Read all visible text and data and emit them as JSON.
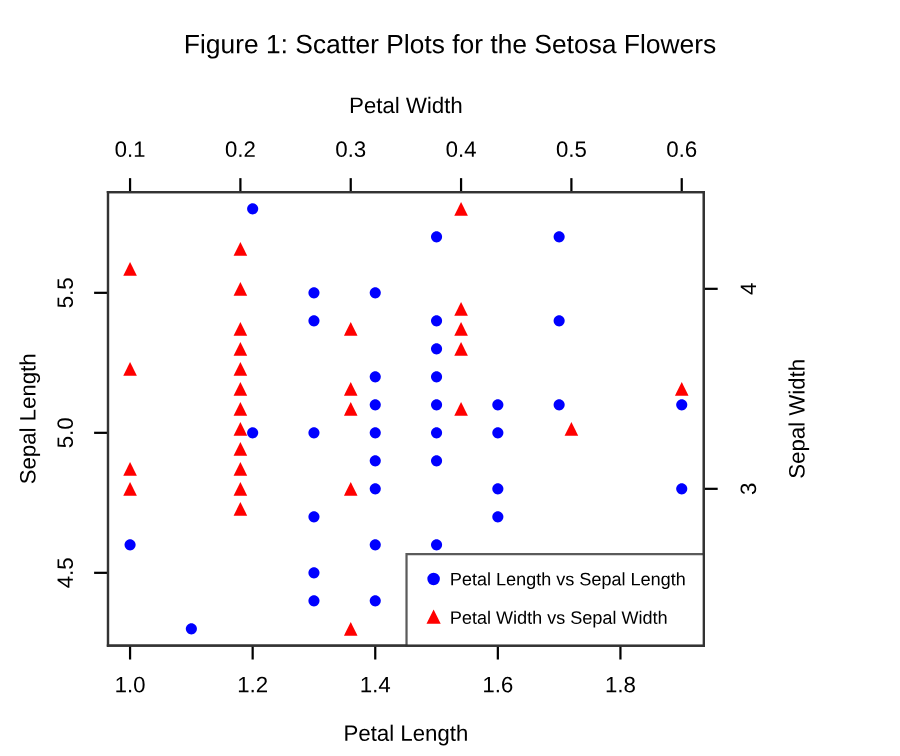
{
  "chart_data": [
    {
      "type": "scatter",
      "title": "Figure 1: Scatter Plots for the Setosa Flowers",
      "xlabel": "Petal Length",
      "ylabel": "Sepal Length",
      "xlim": [
        0.964,
        1.936
      ],
      "xticks": [
        {
          "value": 1.0,
          "label": "1.0"
        },
        {
          "value": 1.2,
          "label": "1.2"
        },
        {
          "value": 1.4,
          "label": "1.4"
        },
        {
          "value": 1.6,
          "label": "1.6"
        },
        {
          "value": 1.8,
          "label": "1.8"
        }
      ],
      "ylim": [
        4.24,
        5.86
      ],
      "yticks": [
        4.5,
        {
          "value": 5.0,
          "label": "5.0"
        },
        5.5
      ],
      "legend": "bottom right",
      "series": [
        {
          "name": "Petal Length vs Sepal Length",
          "color": "#0000ff",
          "marker": "circle",
          "x": [
            1.0,
            1.1,
            1.2,
            1.2,
            1.3,
            1.3,
            1.3,
            1.3,
            1.3,
            1.3,
            1.4,
            1.4,
            1.4,
            1.4,
            1.4,
            1.4,
            1.4,
            1.4,
            1.5,
            1.5,
            1.5,
            1.5,
            1.5,
            1.5,
            1.5,
            1.5,
            1.6,
            1.6,
            1.6,
            1.6,
            1.7,
            1.7,
            1.7,
            1.9,
            1.9
          ],
          "values": [
            4.6,
            4.3,
            5.8,
            5.0,
            5.5,
            5.4,
            5.0,
            4.7,
            4.5,
            4.4,
            5.5,
            5.2,
            5.1,
            5.0,
            4.9,
            4.8,
            4.6,
            4.4,
            5.7,
            5.4,
            5.3,
            5.2,
            5.1,
            5.0,
            4.9,
            4.6,
            5.1,
            5.0,
            4.8,
            4.7,
            5.7,
            5.4,
            5.1,
            5.1,
            4.8
          ]
        }
      ]
    },
    {
      "type": "scatter",
      "xlabel": "Petal Width",
      "ylabel": "Sepal Width",
      "xlim": [
        0.08,
        0.62
      ],
      "xticks": [
        0.1,
        0.2,
        0.3,
        0.4,
        0.5,
        0.6
      ],
      "ylim": [
        2.216,
        4.484
      ],
      "yticks": [
        3,
        4
      ],
      "series": [
        {
          "name": "Petal Width vs Sepal Width",
          "color": "#ff0000",
          "marker": "triangle",
          "x": [
            0.1,
            0.1,
            0.1,
            0.1,
            0.2,
            0.2,
            0.2,
            0.2,
            0.2,
            0.2,
            0.2,
            0.2,
            0.2,
            0.2,
            0.2,
            0.2,
            0.3,
            0.3,
            0.3,
            0.3,
            0.3,
            0.4,
            0.4,
            0.4,
            0.4,
            0.4,
            0.5,
            0.6
          ],
          "values": [
            4.1,
            3.6,
            3.1,
            3.0,
            4.2,
            4.0,
            3.8,
            3.7,
            3.6,
            3.5,
            3.4,
            3.3,
            3.2,
            3.1,
            3.0,
            2.9,
            3.8,
            3.5,
            3.4,
            3.0,
            2.3,
            4.4,
            3.9,
            3.8,
            3.7,
            3.4,
            3.3,
            3.5
          ]
        }
      ]
    }
  ]
}
